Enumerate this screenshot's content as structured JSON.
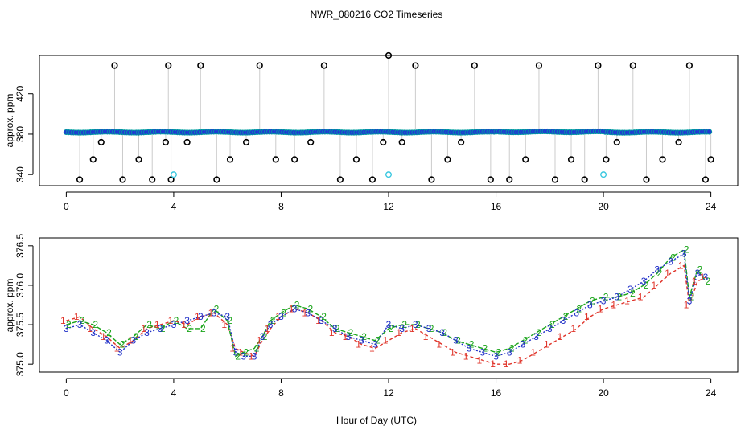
{
  "chart_data": [
    {
      "type": "scatter",
      "title": "NWR_080216  CO2 Timeseries",
      "ylabel": "approx. ppm",
      "xlim": [
        -1,
        25
      ],
      "ylim": [
        329,
        458
      ],
      "xticks": [
        0,
        4,
        8,
        12,
        16,
        20,
        24
      ],
      "yticks": [
        340,
        380,
        420
      ],
      "baseline_ppm": 382,
      "series": [
        {
          "name": "spikes",
          "x": [
            0.5,
            1.0,
            1.3,
            1.8,
            2.1,
            2.7,
            3.2,
            3.7,
            3.8,
            3.9,
            4.5,
            5.0,
            5.6,
            6.1,
            6.7,
            7.2,
            7.8,
            8.5,
            9.1,
            9.6,
            10.2,
            10.8,
            11.4,
            11.8,
            12.0,
            12.5,
            13.0,
            13.6,
            14.2,
            14.7,
            15.2,
            15.8,
            16.5,
            17.1,
            17.6,
            18.2,
            18.8,
            19.3,
            19.8,
            20.1,
            20.5,
            21.1,
            21.6,
            22.2,
            22.8,
            23.2,
            23.8,
            24.0
          ],
          "y": [
            335,
            355,
            372,
            448,
            335,
            355,
            335,
            372,
            448,
            335,
            372,
            448,
            335,
            355,
            372,
            448,
            355,
            355,
            372,
            448,
            335,
            355,
            335,
            372,
            458,
            372,
            448,
            335,
            355,
            372,
            448,
            335,
            335,
            355,
            448,
            335,
            355,
            335,
            448,
            355,
            372,
            448,
            335,
            355,
            372,
            448,
            335,
            355
          ]
        }
      ],
      "cyan_points": {
        "x": [
          4.0,
          12.0,
          20.0
        ],
        "y": [
          340,
          340,
          340
        ]
      }
    },
    {
      "type": "line",
      "title": "",
      "xlabel": "Hour of Day (UTC)",
      "ylabel": "approx. ppm",
      "xlim": [
        -1,
        25
      ],
      "ylim": [
        374.9,
        376.6
      ],
      "xticks": [
        0,
        4,
        8,
        12,
        16,
        20,
        24
      ],
      "yticks": [
        375.0,
        375.5,
        376.0,
        376.5
      ],
      "x": [
        0.0,
        0.5,
        1.0,
        1.5,
        2.0,
        2.5,
        3.0,
        3.5,
        4.0,
        4.5,
        5.0,
        5.5,
        6.0,
        6.3,
        6.6,
        7.0,
        7.3,
        7.6,
        8.0,
        8.5,
        9.0,
        9.5,
        10.0,
        10.5,
        11.0,
        11.5,
        12.0,
        12.5,
        13.0,
        13.5,
        14.0,
        14.5,
        15.0,
        15.5,
        16.0,
        16.5,
        17.0,
        17.5,
        18.0,
        18.5,
        19.0,
        19.5,
        20.0,
        20.5,
        21.0,
        21.5,
        22.0,
        22.5,
        23.0,
        23.2,
        23.5,
        23.8
      ],
      "series": [
        {
          "name": "1",
          "values": [
            375.55,
            375.6,
            375.45,
            375.35,
            375.2,
            375.3,
            375.45,
            375.5,
            375.55,
            375.5,
            375.6,
            375.65,
            375.5,
            375.2,
            375.15,
            375.1,
            375.3,
            375.45,
            375.6,
            375.7,
            375.65,
            375.55,
            375.4,
            375.35,
            375.25,
            375.2,
            375.3,
            375.4,
            375.45,
            375.35,
            375.25,
            375.15,
            375.1,
            375.05,
            375.0,
            375.0,
            375.05,
            375.15,
            375.25,
            375.35,
            375.45,
            375.6,
            375.7,
            375.75,
            375.8,
            375.85,
            376.0,
            376.15,
            376.25,
            375.75,
            376.05,
            376.1
          ]
        },
        {
          "name": "2",
          "values": [
            375.5,
            375.55,
            375.5,
            375.4,
            375.25,
            375.35,
            375.5,
            375.45,
            375.55,
            375.45,
            375.45,
            375.7,
            375.55,
            375.1,
            375.15,
            375.2,
            375.35,
            375.55,
            375.65,
            375.75,
            375.7,
            375.6,
            375.45,
            375.4,
            375.35,
            375.3,
            375.45,
            375.5,
            375.5,
            375.45,
            375.4,
            375.3,
            375.25,
            375.2,
            375.15,
            375.2,
            375.3,
            375.4,
            375.5,
            375.6,
            375.7,
            375.8,
            375.85,
            375.85,
            375.9,
            376.0,
            376.15,
            376.35,
            376.45,
            375.85,
            376.2,
            376.05
          ]
        },
        {
          "name": "3",
          "values": [
            375.45,
            375.5,
            375.4,
            375.3,
            375.15,
            375.3,
            375.4,
            375.45,
            375.5,
            375.55,
            375.6,
            375.65,
            375.6,
            375.15,
            375.1,
            375.1,
            375.35,
            375.5,
            375.6,
            375.7,
            375.65,
            375.55,
            375.45,
            375.35,
            375.3,
            375.25,
            375.5,
            375.45,
            375.5,
            375.45,
            375.4,
            375.3,
            375.2,
            375.15,
            375.1,
            375.15,
            375.25,
            375.35,
            375.45,
            375.55,
            375.65,
            375.75,
            375.8,
            375.85,
            375.95,
            376.05,
            376.2,
            376.3,
            376.4,
            375.8,
            376.15,
            376.1
          ]
        }
      ]
    }
  ],
  "colors": {
    "spikes_stroke": "#000000",
    "baseline_fill": "#1f3bd1",
    "baseline_edge": "#00a0a0",
    "cyan": "#3cc8e0",
    "drop_line": "#999999",
    "series_1": "#e0342a",
    "series_2": "#1aa51a",
    "series_3": "#2030c8"
  }
}
